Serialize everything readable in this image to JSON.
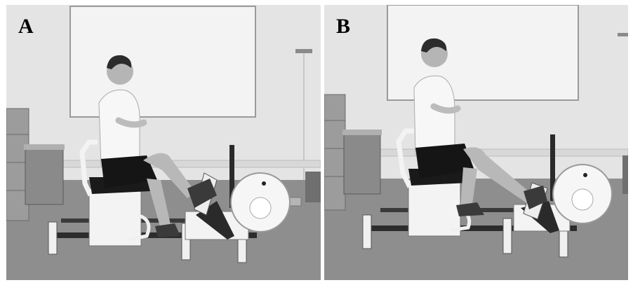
{
  "figure": {
    "panels": [
      {
        "label": "A",
        "description_color": "grayscale"
      },
      {
        "label": "B",
        "description_color": "grayscale"
      }
    ]
  },
  "colors": {
    "wall": "#e6e6e6",
    "floor": "#8c8c8c",
    "machine": "#f2f2f2",
    "frame": "#2a2a2a",
    "shirt": "#f7f7f7",
    "shorts": "#151515",
    "skin": "#b8b8b8",
    "hair": "#2c2c2c"
  }
}
